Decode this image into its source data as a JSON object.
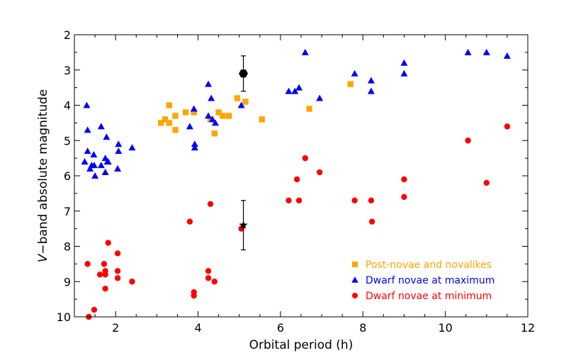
{
  "chart_data": {
    "type": "scatter",
    "xlabel": "Orbital period (h)",
    "ylabel_italic": "V",
    "ylabel_rest": "−band absolute magnitude",
    "xlim": [
      1,
      12
    ],
    "ylim": [
      2,
      10
    ],
    "y_inverted": true,
    "x_ticks": [
      2,
      4,
      6,
      8,
      10,
      12
    ],
    "y_ticks": [
      2,
      3,
      4,
      5,
      6,
      7,
      8,
      9,
      10
    ],
    "grid": false,
    "legend_placement": "lower-right",
    "series": [
      {
        "name": "Post-novae and novalikes",
        "marker": "square",
        "color": "#FFA500",
        "points": [
          [
            3.1,
            4.5
          ],
          [
            3.2,
            4.4
          ],
          [
            3.3,
            4.5
          ],
          [
            3.3,
            4.0
          ],
          [
            3.45,
            4.3
          ],
          [
            3.45,
            4.7
          ],
          [
            3.7,
            4.2
          ],
          [
            3.9,
            4.2
          ],
          [
            4.3,
            4.4
          ],
          [
            4.4,
            4.8
          ],
          [
            4.5,
            4.2
          ],
          [
            4.6,
            4.3
          ],
          [
            4.75,
            4.3
          ],
          [
            4.95,
            3.8
          ],
          [
            5.15,
            3.9
          ],
          [
            5.55,
            4.4
          ],
          [
            6.7,
            4.1
          ],
          [
            7.7,
            3.4
          ]
        ]
      },
      {
        "name": "Dwarf novae at maximum",
        "marker": "triangle",
        "color": "#0000FF",
        "points": [
          [
            1.25,
            5.6
          ],
          [
            1.3,
            4.0
          ],
          [
            1.32,
            4.7
          ],
          [
            1.32,
            5.3
          ],
          [
            1.38,
            5.8
          ],
          [
            1.42,
            5.7
          ],
          [
            1.47,
            5.4
          ],
          [
            1.48,
            5.7
          ],
          [
            1.5,
            6.0
          ],
          [
            1.65,
            4.6
          ],
          [
            1.65,
            5.7
          ],
          [
            1.75,
            5.5
          ],
          [
            1.75,
            5.9
          ],
          [
            1.78,
            4.9
          ],
          [
            1.8,
            5.6
          ],
          [
            1.82,
            5.6
          ],
          [
            2.05,
            5.8
          ],
          [
            2.07,
            5.3
          ],
          [
            2.07,
            5.1
          ],
          [
            2.4,
            5.2
          ],
          [
            3.8,
            4.6
          ],
          [
            3.9,
            4.1
          ],
          [
            3.92,
            5.1
          ],
          [
            3.92,
            5.2
          ],
          [
            4.25,
            4.3
          ],
          [
            4.25,
            3.4
          ],
          [
            4.32,
            3.8
          ],
          [
            4.35,
            4.4
          ],
          [
            4.42,
            4.5
          ],
          [
            5.05,
            4.0
          ],
          [
            6.2,
            3.6
          ],
          [
            6.35,
            3.6
          ],
          [
            6.45,
            3.5
          ],
          [
            6.6,
            2.5
          ],
          [
            6.95,
            3.8
          ],
          [
            7.8,
            3.1
          ],
          [
            8.2,
            3.3
          ],
          [
            8.2,
            3.6
          ],
          [
            9.0,
            2.8
          ],
          [
            9.0,
            3.1
          ],
          [
            10.55,
            2.5
          ],
          [
            11.0,
            2.5
          ],
          [
            11.5,
            2.6
          ]
        ]
      },
      {
        "name": "Dwarf novae at minimum",
        "marker": "circle",
        "color": "#FF0000",
        "points": [
          [
            1.32,
            8.5
          ],
          [
            1.35,
            10.0
          ],
          [
            1.48,
            9.8
          ],
          [
            1.62,
            8.8
          ],
          [
            1.72,
            8.5
          ],
          [
            1.75,
            8.7
          ],
          [
            1.75,
            8.8
          ],
          [
            1.75,
            9.2
          ],
          [
            1.82,
            7.9
          ],
          [
            2.05,
            8.2
          ],
          [
            2.05,
            8.7
          ],
          [
            2.05,
            8.9
          ],
          [
            2.4,
            9.0
          ],
          [
            3.8,
            7.3
          ],
          [
            3.9,
            9.3
          ],
          [
            3.9,
            9.4
          ],
          [
            4.25,
            8.7
          ],
          [
            4.25,
            8.9
          ],
          [
            4.3,
            6.8
          ],
          [
            4.4,
            9.0
          ],
          [
            5.05,
            7.5
          ],
          [
            6.2,
            6.7
          ],
          [
            6.4,
            6.1
          ],
          [
            6.45,
            6.7
          ],
          [
            6.6,
            5.5
          ],
          [
            6.95,
            5.9
          ],
          [
            7.8,
            6.7
          ],
          [
            8.2,
            6.7
          ],
          [
            8.22,
            7.3
          ],
          [
            9.0,
            6.1
          ],
          [
            9.0,
            6.6
          ],
          [
            10.55,
            5.0
          ],
          [
            11.0,
            6.2
          ],
          [
            11.5,
            4.6
          ]
        ]
      }
    ],
    "highlighted": [
      {
        "marker": "hexagon",
        "color": "#000000",
        "x": 5.1,
        "y": 3.1,
        "yerr_low": 2.6,
        "yerr_high": 3.6
      },
      {
        "marker": "star",
        "color": "#000000",
        "x": 5.1,
        "y": 7.4,
        "yerr_low": 6.7,
        "yerr_high": 8.1
      }
    ]
  }
}
